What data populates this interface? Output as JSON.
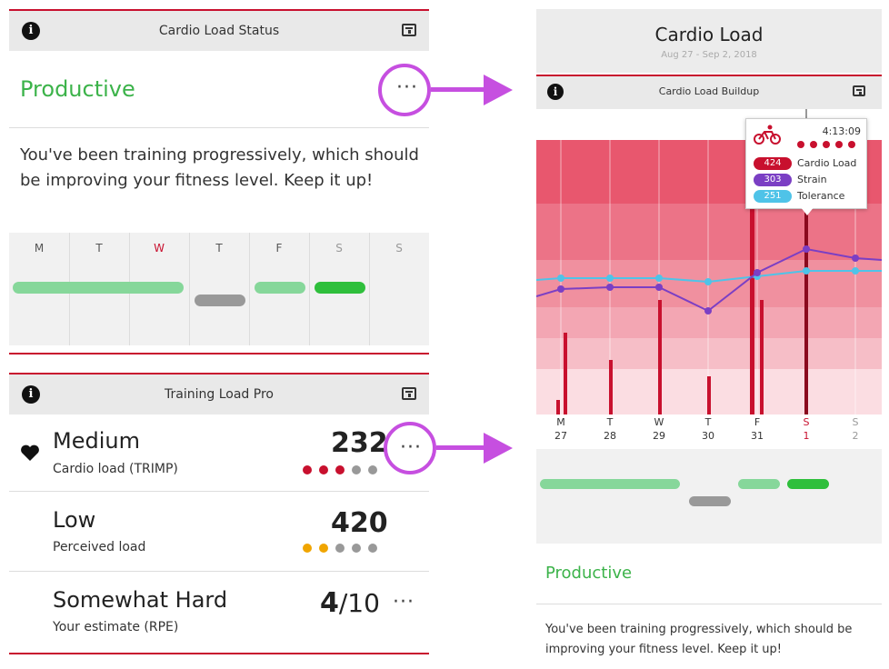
{
  "left": {
    "status_panel": {
      "title": "Cardio Load Status",
      "status": "Productive",
      "description": "You've been training progressively, which should be improving your fitness level. Keep it up!",
      "days": [
        "M",
        "T",
        "W",
        "T",
        "F",
        "S",
        "S"
      ]
    },
    "training_panel": {
      "title": "Training Load Pro",
      "rows": [
        {
          "level": "Medium",
          "label": "Cardio load (TRIMP)",
          "value": "232"
        },
        {
          "level": "Low",
          "label": "Perceived load",
          "value": "420"
        },
        {
          "level": "Somewhat Hard",
          "label": "Your estimate (RPE)",
          "value_main": "4",
          "value_suffix": "/10"
        }
      ]
    }
  },
  "right": {
    "header": {
      "title": "Cardio Load",
      "subtitle": "Aug 27 - Sep 2, 2018"
    },
    "buildup_panel": {
      "title": "Cardio Load Buildup"
    },
    "tooltip": {
      "time": "4:13:09",
      "items": [
        {
          "value": "424",
          "label": "Cardio Load",
          "color": "#c8102e"
        },
        {
          "value": "303",
          "label": "Strain",
          "color": "#7b3fc4"
        },
        {
          "value": "251",
          "label": "Tolerance",
          "color": "#4fc3e8"
        }
      ]
    },
    "chart_data": {
      "type": "bar",
      "categories": [
        "M 27",
        "T 28",
        "W 29",
        "T 30",
        "F 31",
        "S 1",
        "S 2"
      ],
      "day_letters": [
        "M",
        "T",
        "W",
        "T",
        "F",
        "S",
        "S"
      ],
      "day_numbers": [
        "27",
        "28",
        "29",
        "30",
        "31",
        "1",
        "2"
      ]
    },
    "status": "Productive",
    "description": "You've been training progressively, which should be improving your fitness level. Keep it up!"
  },
  "colors": {
    "accent_red": "#c8102e",
    "productive_green": "#3cb34a",
    "highlight_purple": "#c64fe0"
  }
}
